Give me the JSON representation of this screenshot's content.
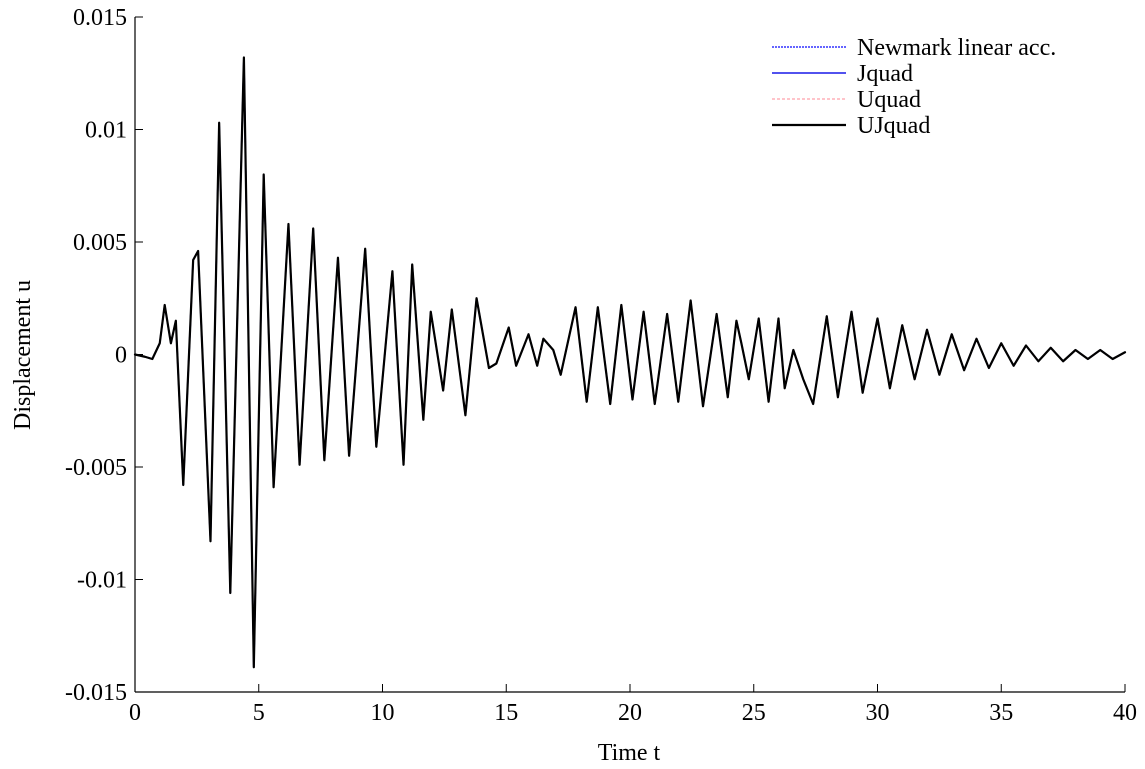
{
  "chart_data": {
    "type": "line",
    "title": "",
    "xlabel": "Time t",
    "ylabel": "Displacement u",
    "xlim": [
      0,
      40
    ],
    "ylim": [
      -0.015,
      0.015
    ],
    "x_ticks": [
      0,
      5,
      10,
      15,
      20,
      25,
      30,
      35,
      40
    ],
    "x_tick_labels": [
      "0",
      "5",
      "10",
      "15",
      "20",
      "25",
      "30",
      "35",
      "40"
    ],
    "y_ticks": [
      -0.015,
      -0.01,
      -0.005,
      0,
      0.005,
      0.01,
      0.015
    ],
    "y_tick_labels": [
      "-0.015",
      "-0.01",
      "-0.005",
      "0",
      "0.005",
      "0.01",
      "0.015"
    ],
    "grid": false,
    "legend_position": "top-right",
    "x": [
      0,
      0.4,
      0.7,
      1.0,
      1.2,
      1.45,
      1.65,
      1.95,
      2.35,
      2.55,
      3.05,
      3.4,
      3.85,
      4.4,
      4.8,
      5.2,
      5.6,
      6.2,
      6.65,
      7.2,
      7.65,
      8.2,
      8.65,
      9.3,
      9.75,
      10.4,
      10.85,
      11.2,
      11.65,
      11.95,
      12.45,
      12.8,
      13.35,
      13.8,
      14.3,
      14.6,
      15.1,
      15.4,
      15.9,
      16.25,
      16.5,
      16.9,
      17.2,
      17.8,
      18.25,
      18.7,
      19.2,
      19.65,
      20.1,
      20.55,
      21.0,
      21.5,
      21.95,
      22.45,
      22.95,
      23.5,
      23.95,
      24.3,
      24.5,
      24.8,
      25.2,
      25.6,
      26.0,
      26.25,
      26.6,
      27.0,
      27.4,
      27.95,
      28.4,
      28.95,
      29.4,
      30.0,
      30.5,
      31.0,
      31.5,
      32.0,
      32.5,
      33.0,
      33.5,
      34.0,
      34.5,
      35.0,
      35.5,
      36.0,
      36.5,
      37.0,
      37.5,
      38.0,
      38.5,
      39.0,
      39.5,
      40.0
    ],
    "series": [
      {
        "name": "Newmark linear acc.",
        "color": "#3030ff",
        "values": [
          0,
          -0.0001,
          -0.0002,
          0.0005,
          0.0022,
          0.0005,
          0.0015,
          -0.0058,
          0.0042,
          0.0046,
          -0.0083,
          0.0103,
          -0.0106,
          0.0132,
          -0.0139,
          0.008,
          -0.0059,
          0.0058,
          -0.0049,
          0.0056,
          -0.0047,
          0.0043,
          -0.0045,
          0.0047,
          -0.0041,
          0.0037,
          -0.0049,
          0.004,
          -0.0029,
          0.0019,
          -0.0016,
          0.002,
          -0.0027,
          0.0025,
          -0.0006,
          -0.0004,
          0.0012,
          -0.0005,
          0.0009,
          -0.0005,
          0.0007,
          0.0002,
          -0.0009,
          0.0021,
          -0.0021,
          0.0021,
          -0.0022,
          0.0022,
          -0.002,
          0.0019,
          -0.0022,
          0.0018,
          -0.0021,
          0.0024,
          -0.0023,
          0.0018,
          -0.0019,
          0.0015,
          0.0005,
          -0.0011,
          0.0016,
          -0.0021,
          0.0016,
          -0.0015,
          0.0002,
          -0.0011,
          -0.0022,
          0.0017,
          -0.0019,
          0.0019,
          -0.0017,
          0.0016,
          -0.0015,
          0.0013,
          -0.0011,
          0.0011,
          -0.0009,
          0.0009,
          -0.0007,
          0.0007,
          -0.0006,
          0.0005,
          -0.0005,
          0.0004,
          -0.0003,
          0.0003,
          -0.0003,
          0.0002,
          -0.0002,
          0.0002,
          -0.0002,
          0.0001
        ]
      },
      {
        "name": "Jquad",
        "color": "#1818e8",
        "values": [
          0,
          -0.0001,
          -0.0002,
          0.0005,
          0.0022,
          0.0005,
          0.0015,
          -0.0058,
          0.0042,
          0.0046,
          -0.0083,
          0.0103,
          -0.0106,
          0.0132,
          -0.0139,
          0.008,
          -0.0059,
          0.0058,
          -0.0049,
          0.0056,
          -0.0047,
          0.0043,
          -0.0045,
          0.0047,
          -0.0041,
          0.0037,
          -0.0049,
          0.004,
          -0.0029,
          0.0019,
          -0.0016,
          0.002,
          -0.0027,
          0.0025,
          -0.0006,
          -0.0004,
          0.0012,
          -0.0005,
          0.0009,
          -0.0005,
          0.0007,
          0.0002,
          -0.0009,
          0.0021,
          -0.0021,
          0.0021,
          -0.0022,
          0.0022,
          -0.002,
          0.0019,
          -0.0022,
          0.0018,
          -0.0021,
          0.0024,
          -0.0023,
          0.0018,
          -0.0019,
          0.0015,
          0.0005,
          -0.0011,
          0.0016,
          -0.0021,
          0.0016,
          -0.0015,
          0.0002,
          -0.0011,
          -0.0022,
          0.0017,
          -0.0019,
          0.0019,
          -0.0017,
          0.0016,
          -0.0015,
          0.0013,
          -0.0011,
          0.0011,
          -0.0009,
          0.0009,
          -0.0007,
          0.0007,
          -0.0006,
          0.0005,
          -0.0005,
          0.0004,
          -0.0003,
          0.0003,
          -0.0003,
          0.0002,
          -0.0002,
          0.0002,
          -0.0002,
          0.0001
        ]
      },
      {
        "name": "Uquad",
        "color": "#ffb0b8",
        "values": [
          0,
          -0.0001,
          -0.0002,
          0.0005,
          0.0022,
          0.0005,
          0.0015,
          -0.0058,
          0.0042,
          0.0046,
          -0.0083,
          0.0103,
          -0.0106,
          0.0132,
          -0.0139,
          0.008,
          -0.0059,
          0.0058,
          -0.0049,
          0.0056,
          -0.0047,
          0.0043,
          -0.0045,
          0.0047,
          -0.0041,
          0.0037,
          -0.0049,
          0.004,
          -0.0029,
          0.0019,
          -0.0016,
          0.002,
          -0.0027,
          0.0025,
          -0.0006,
          -0.0004,
          0.0012,
          -0.0005,
          0.0009,
          -0.0005,
          0.0007,
          0.0002,
          -0.0009,
          0.0021,
          -0.0021,
          0.0021,
          -0.0022,
          0.0022,
          -0.002,
          0.0019,
          -0.0022,
          0.0018,
          -0.0021,
          0.0024,
          -0.0023,
          0.0018,
          -0.0019,
          0.0015,
          0.0005,
          -0.0011,
          0.0016,
          -0.0021,
          0.0016,
          -0.0015,
          0.0002,
          -0.0011,
          -0.0022,
          0.0017,
          -0.0019,
          0.0019,
          -0.0017,
          0.0016,
          -0.0015,
          0.0013,
          -0.0011,
          0.0011,
          -0.0009,
          0.0009,
          -0.0007,
          0.0007,
          -0.0006,
          0.0005,
          -0.0005,
          0.0004,
          -0.0003,
          0.0003,
          -0.0003,
          0.0002,
          -0.0002,
          0.0002,
          -0.0002,
          0.0001
        ]
      },
      {
        "name": "UJquad",
        "color": "#000000",
        "values": [
          0,
          -0.0001,
          -0.0002,
          0.0005,
          0.0022,
          0.0005,
          0.0015,
          -0.0058,
          0.0042,
          0.0046,
          -0.0083,
          0.0103,
          -0.0106,
          0.0132,
          -0.0139,
          0.008,
          -0.0059,
          0.0058,
          -0.0049,
          0.0056,
          -0.0047,
          0.0043,
          -0.0045,
          0.0047,
          -0.0041,
          0.0037,
          -0.0049,
          0.004,
          -0.0029,
          0.0019,
          -0.0016,
          0.002,
          -0.0027,
          0.0025,
          -0.0006,
          -0.0004,
          0.0012,
          -0.0005,
          0.0009,
          -0.0005,
          0.0007,
          0.0002,
          -0.0009,
          0.0021,
          -0.0021,
          0.0021,
          -0.0022,
          0.0022,
          -0.002,
          0.0019,
          -0.0022,
          0.0018,
          -0.0021,
          0.0024,
          -0.0023,
          0.0018,
          -0.0019,
          0.0015,
          0.0005,
          -0.0011,
          0.0016,
          -0.0021,
          0.0016,
          -0.0015,
          0.0002,
          -0.0011,
          -0.0022,
          0.0017,
          -0.0019,
          0.0019,
          -0.0017,
          0.0016,
          -0.0015,
          0.0013,
          -0.0011,
          0.0011,
          -0.0009,
          0.0009,
          -0.0007,
          0.0007,
          -0.0006,
          0.0005,
          -0.0005,
          0.0004,
          -0.0003,
          0.0003,
          -0.0003,
          0.0002,
          -0.0002,
          0.0002,
          -0.0002,
          0.0001
        ]
      }
    ]
  }
}
